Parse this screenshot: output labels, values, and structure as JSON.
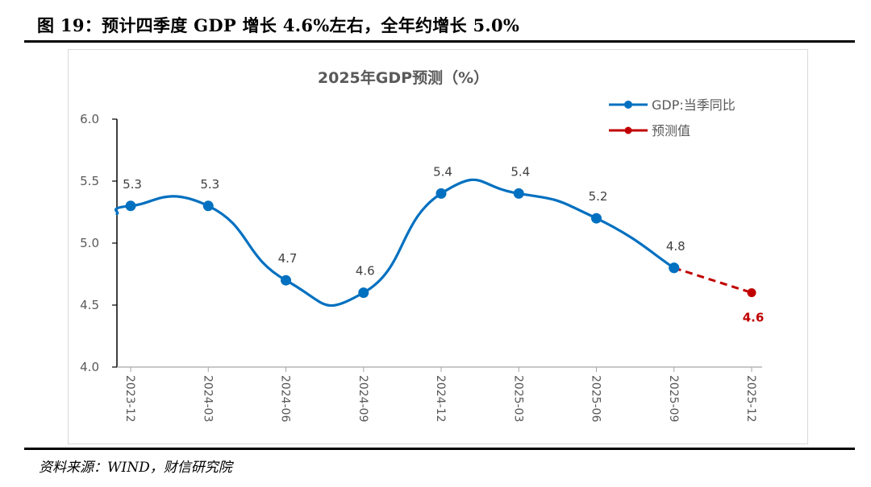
{
  "figure": {
    "title": "图 19：预计四季度 GDP 增长 4.6%左右，全年约增长 5.0%",
    "source": "资料来源：WIND，财信研究院"
  },
  "chart_data": {
    "type": "line",
    "title": "2025年GDP预测（%）",
    "xlabel": "",
    "ylabel": "",
    "ylim": [
      4.0,
      6.0
    ],
    "yticks": [
      "6.0",
      "5.5",
      "5.0",
      "4.5",
      "4.0"
    ],
    "ytick_values": [
      6.0,
      5.5,
      5.0,
      4.5,
      4.0
    ],
    "categories": [
      "2023-12",
      "2024-03",
      "2024-06",
      "2024-09",
      "2024-12",
      "2025-03",
      "2025-06",
      "2025-09",
      "2025-12"
    ],
    "grid": false,
    "legend_position": "top-right",
    "series": [
      {
        "name": "GDP:当季同比",
        "color": "#0070c0",
        "style": "solid-smooth",
        "values": [
          5.3,
          5.3,
          4.7,
          4.6,
          5.4,
          5.4,
          5.2,
          4.8,
          null
        ],
        "labels": [
          "5.3",
          "5.3",
          "4.7",
          "4.6",
          "5.4",
          "5.4",
          "5.2",
          "4.8",
          ""
        ]
      },
      {
        "name": "预测值",
        "color": "#c00000",
        "style": "dashed",
        "values": [
          null,
          null,
          null,
          null,
          null,
          null,
          null,
          4.8,
          4.6
        ],
        "labels": [
          "",
          "",
          "",
          "",
          "",
          "",
          "",
          "",
          "4.6"
        ]
      }
    ]
  }
}
